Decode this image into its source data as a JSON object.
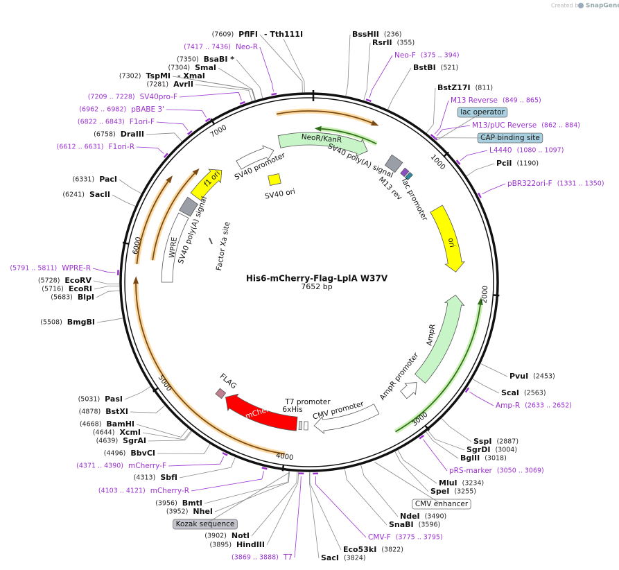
{
  "header": {
    "created_by": "Created by",
    "brand": "SnapGene"
  },
  "map": {
    "name": "His6-mCherry-Flag-LplA W37V",
    "length": "7652 bp"
  },
  "sites": [
    {
      "name": "BssHII",
      "position": "(236)"
    },
    {
      "name": "RsrII",
      "position": "(355)"
    },
    {
      "name": "BstBI",
      "position": "(521)"
    },
    {
      "name": "BstZ17I",
      "position": "(811)"
    },
    {
      "name": "PciI",
      "position": "(1190)"
    },
    {
      "name": "PvuI",
      "position": "(2453)"
    },
    {
      "name": "ScaI",
      "position": "(2563)"
    },
    {
      "name": "SspI",
      "position": "(2887)"
    },
    {
      "name": "SgrDI",
      "position": "(3004)"
    },
    {
      "name": "BglII",
      "position": "(3018)"
    },
    {
      "name": "MluI",
      "position": "(3234)"
    },
    {
      "name": "SpeI",
      "position": "(3255)"
    },
    {
      "name": "NdeI",
      "position": "(3490)"
    },
    {
      "name": "SnaBI",
      "position": "(3596)"
    },
    {
      "name": "Eco53kI",
      "position": "(3822)"
    },
    {
      "name": "SacI",
      "position": "(3824)"
    },
    {
      "name": "HindIII",
      "position": "(3895)"
    },
    {
      "name": "NotI",
      "position": "(3902)"
    },
    {
      "name": "NheI",
      "position": "(3952)"
    },
    {
      "name": "BmtI",
      "position": "(3956)"
    },
    {
      "name": "SbfI",
      "position": "(4313)"
    },
    {
      "name": "BbvCI",
      "position": "(4496)"
    },
    {
      "name": "SgrAI",
      "position": "(4639)"
    },
    {
      "name": "XcmI",
      "position": "(4644)"
    },
    {
      "name": "BamHI",
      "position": "(4668)"
    },
    {
      "name": "BstXI",
      "position": "(4878)"
    },
    {
      "name": "PasI",
      "position": "(5031)"
    },
    {
      "name": "BmgBI",
      "position": "(5508)"
    },
    {
      "name": "BlpI",
      "position": "(5683)"
    },
    {
      "name": "EcoRI",
      "position": "(5716)"
    },
    {
      "name": "EcoRV",
      "position": "(5728)"
    },
    {
      "name": "SacII",
      "position": "(6241)"
    },
    {
      "name": "PacI",
      "position": "(6331)"
    },
    {
      "name": "DraIII",
      "position": "(6758)"
    },
    {
      "name": "AvrII",
      "position": "(7281)"
    },
    {
      "name": "TspMI",
      "position": "(7302)"
    },
    {
      "name": "SmaI",
      "position": "(7304)"
    },
    {
      "name": "BsaBI *",
      "position": "(7350)"
    },
    {
      "name": "PflFI",
      "position": "(7609)"
    }
  ],
  "site_extras": [
    "- Tth111I",
    "- XmaI"
  ],
  "primers": [
    {
      "name": "Neo-F",
      "range": "(375 .. 394)"
    },
    {
      "name": "M13 Reverse",
      "range": "(849 .. 865)"
    },
    {
      "name": "M13/pUC Reverse",
      "range": "(862 .. 884)"
    },
    {
      "name": "L4440",
      "range": "(1080 .. 1097)"
    },
    {
      "name": "pBR322ori-F",
      "range": "(1331 .. 1350)"
    },
    {
      "name": "Amp-R",
      "range": "(2633 .. 2652)"
    },
    {
      "name": "pRS-marker",
      "range": "(3050 .. 3069)"
    },
    {
      "name": "CMV-F",
      "range": "(3775 .. 3795)"
    },
    {
      "name": "T7",
      "range": "(3869 .. 3888)"
    },
    {
      "name": "mCherry-R",
      "range": "(4103 .. 4121)"
    },
    {
      "name": "mCherry-F",
      "range": "(4371 .. 4390)"
    },
    {
      "name": "WPRE-R",
      "range": "(5791 .. 5811)"
    },
    {
      "name": "F1ori-R",
      "range": "(6612 .. 6631)"
    },
    {
      "name": "F1ori-F",
      "range": "(6822 .. 6843)"
    },
    {
      "name": "pBABE 3'",
      "range": "(6962 .. 6982)"
    },
    {
      "name": "SV40pro-F",
      "range": "(7209 .. 7228)"
    },
    {
      "name": "Neo-R",
      "range": "(7417 .. 7436)"
    }
  ],
  "boxed_features": [
    "lac operator",
    "CAP binding site",
    "CMV enhancer",
    "Kozak sequence"
  ],
  "features": [
    "NeoR/KanR",
    "SV40 promoter",
    "SV40 poly(A) signal",
    "SV40 poly(A) signal",
    "f1 ori",
    "WPRE",
    "Factor Xa site",
    "SV40 ori",
    "M13 rev",
    "lac promoter",
    "ori",
    "AmpR",
    "AmpR promoter",
    "CMV promoter",
    "T7 promoter",
    "6xHis",
    "mCherry",
    "FLAG"
  ],
  "ticks": [
    "1000",
    "2000",
    "3000",
    "4000",
    "5000",
    "6000",
    "7000"
  ]
}
